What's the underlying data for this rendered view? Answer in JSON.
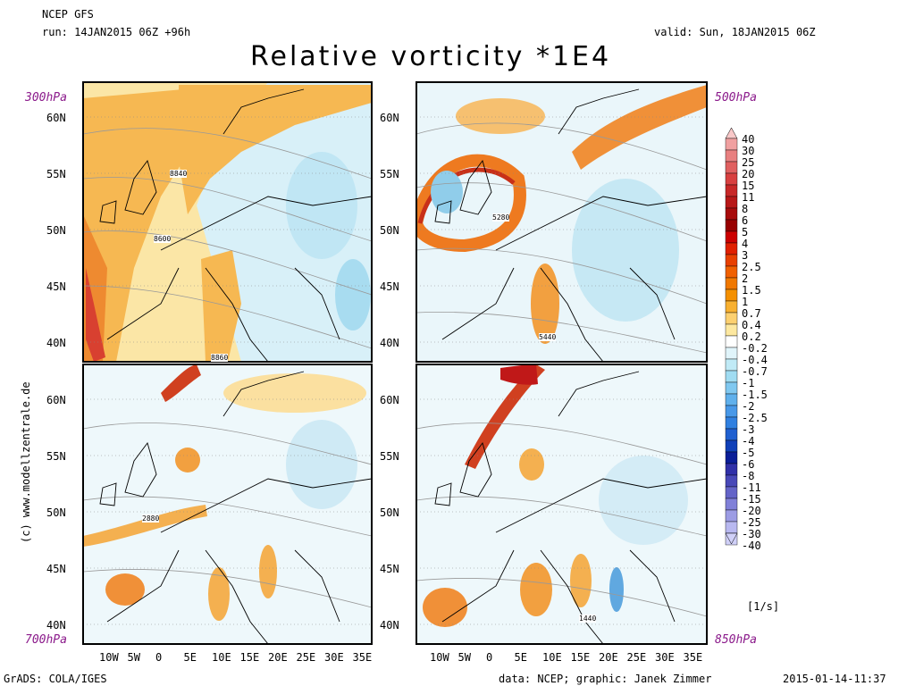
{
  "header": {
    "model": "NCEP GFS",
    "run": "run: 14JAN2015 06Z +96h",
    "valid": "valid: Sun, 18JAN2015 06Z",
    "title": "Relative vorticity *1E4"
  },
  "panels": [
    {
      "id": "p300",
      "level": "300hPa",
      "contour_label_a": "8840",
      "contour_label_b": "8600",
      "contour_label_c": "8860"
    },
    {
      "id": "p500",
      "level": "500hPa",
      "contour_label_a": "5280",
      "contour_label_b": "5440"
    },
    {
      "id": "p700",
      "level": "700hPa",
      "contour_label_a": "2880"
    },
    {
      "id": "p850",
      "level": "850hPa",
      "contour_label_a": "1440"
    }
  ],
  "lat_ticks": [
    "60N",
    "55N",
    "50N",
    "45N",
    "40N"
  ],
  "lon_ticks": [
    "10W",
    "5W",
    "0",
    "5E",
    "10E",
    "15E",
    "20E",
    "25E",
    "30E",
    "35E"
  ],
  "colorbar": {
    "labels": [
      "40",
      "30",
      "25",
      "20",
      "15",
      "11",
      "8",
      "6",
      "5",
      "4",
      "3",
      "2.5",
      "2",
      "1.5",
      "1",
      "0.7",
      "0.4",
      "0.2",
      "-0.2",
      "-0.4",
      "-0.7",
      "-1",
      "-1.5",
      "-2",
      "-2.5",
      "-3",
      "-4",
      "-5",
      "-6",
      "-8",
      "-11",
      "-15",
      "-20",
      "-25",
      "-30",
      "-40"
    ],
    "colors": [
      "#f8c8c8",
      "#f0a0a0",
      "#e88080",
      "#e06060",
      "#d84040",
      "#c82828",
      "#b81818",
      "#a80c0c",
      "#980000",
      "#cc0000",
      "#e02000",
      "#e84000",
      "#f06000",
      "#f07800",
      "#f49000",
      "#f8b030",
      "#fcd070",
      "#fde8a0",
      "#ffffff",
      "#e0f4fa",
      "#c0eaf6",
      "#a0dcf2",
      "#80c8f0",
      "#60b0ec",
      "#4898e8",
      "#3080e0",
      "#2060d0",
      "#1040b8",
      "#0a1e98",
      "#3030a8",
      "#4848b8",
      "#6464c8",
      "#8080d8",
      "#9c9ce4",
      "#b8b8f0",
      "#d0d0f8"
    ],
    "units": "[1/s]"
  },
  "footer": {
    "software": "GrADS: COLA/IGES",
    "data": "data: NCEP; graphic: Janek Zimmer",
    "timestamp": "2015-01-14-11:37",
    "credit": "(c) www.modellzentrale.de"
  }
}
